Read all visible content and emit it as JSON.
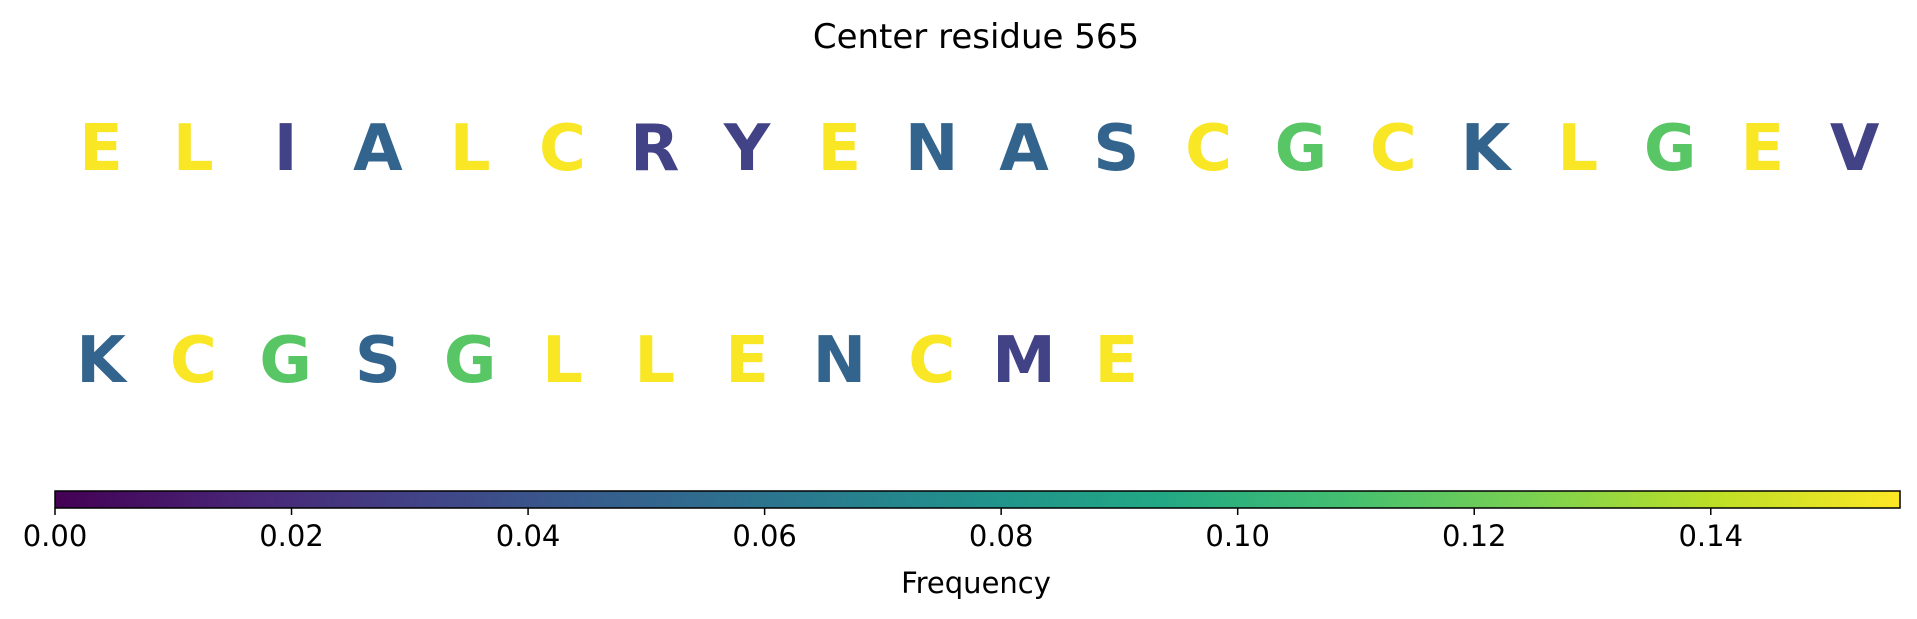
{
  "chart_data": {
    "type": "heatmap",
    "title": "Center residue 565",
    "colormap": "viridis",
    "colorbar": {
      "label": "Frequency",
      "range": [
        0,
        0.156
      ],
      "ticks": [
        0.0,
        0.02,
        0.04,
        0.06,
        0.08,
        0.1,
        0.12,
        0.14
      ],
      "tick_labels": [
        "0.00",
        "0.02",
        "0.04",
        "0.06",
        "0.08",
        "0.10",
        "0.12",
        "0.14"
      ],
      "orientation": "horizontal",
      "placement": "bottom"
    },
    "rows": [
      {
        "residues": [
          {
            "letter": "E",
            "value": 0.155
          },
          {
            "letter": "L",
            "value": 0.155
          },
          {
            "letter": "I",
            "value": 0.03
          },
          {
            "letter": "A",
            "value": 0.05
          },
          {
            "letter": "L",
            "value": 0.155
          },
          {
            "letter": "C",
            "value": 0.155
          },
          {
            "letter": "R",
            "value": 0.03
          },
          {
            "letter": "Y",
            "value": 0.03
          },
          {
            "letter": "E",
            "value": 0.155
          },
          {
            "letter": "N",
            "value": 0.05
          },
          {
            "letter": "A",
            "value": 0.05
          },
          {
            "letter": "S",
            "value": 0.05
          },
          {
            "letter": "C",
            "value": 0.155
          },
          {
            "letter": "G",
            "value": 0.115
          },
          {
            "letter": "C",
            "value": 0.155
          },
          {
            "letter": "K",
            "value": 0.05
          },
          {
            "letter": "L",
            "value": 0.155
          },
          {
            "letter": "G",
            "value": 0.115
          },
          {
            "letter": "E",
            "value": 0.155
          },
          {
            "letter": "V",
            "value": 0.03
          }
        ]
      },
      {
        "residues": [
          {
            "letter": "K",
            "value": 0.05
          },
          {
            "letter": "C",
            "value": 0.155
          },
          {
            "letter": "G",
            "value": 0.115
          },
          {
            "letter": "S",
            "value": 0.05
          },
          {
            "letter": "G",
            "value": 0.115
          },
          {
            "letter": "L",
            "value": 0.155
          },
          {
            "letter": "L",
            "value": 0.155
          },
          {
            "letter": "E",
            "value": 0.155
          },
          {
            "letter": "N",
            "value": 0.05
          },
          {
            "letter": "C",
            "value": 0.155
          },
          {
            "letter": "M",
            "value": 0.03
          },
          {
            "letter": "E",
            "value": 0.155
          }
        ]
      }
    ],
    "grid": false,
    "axes_visible": false
  }
}
